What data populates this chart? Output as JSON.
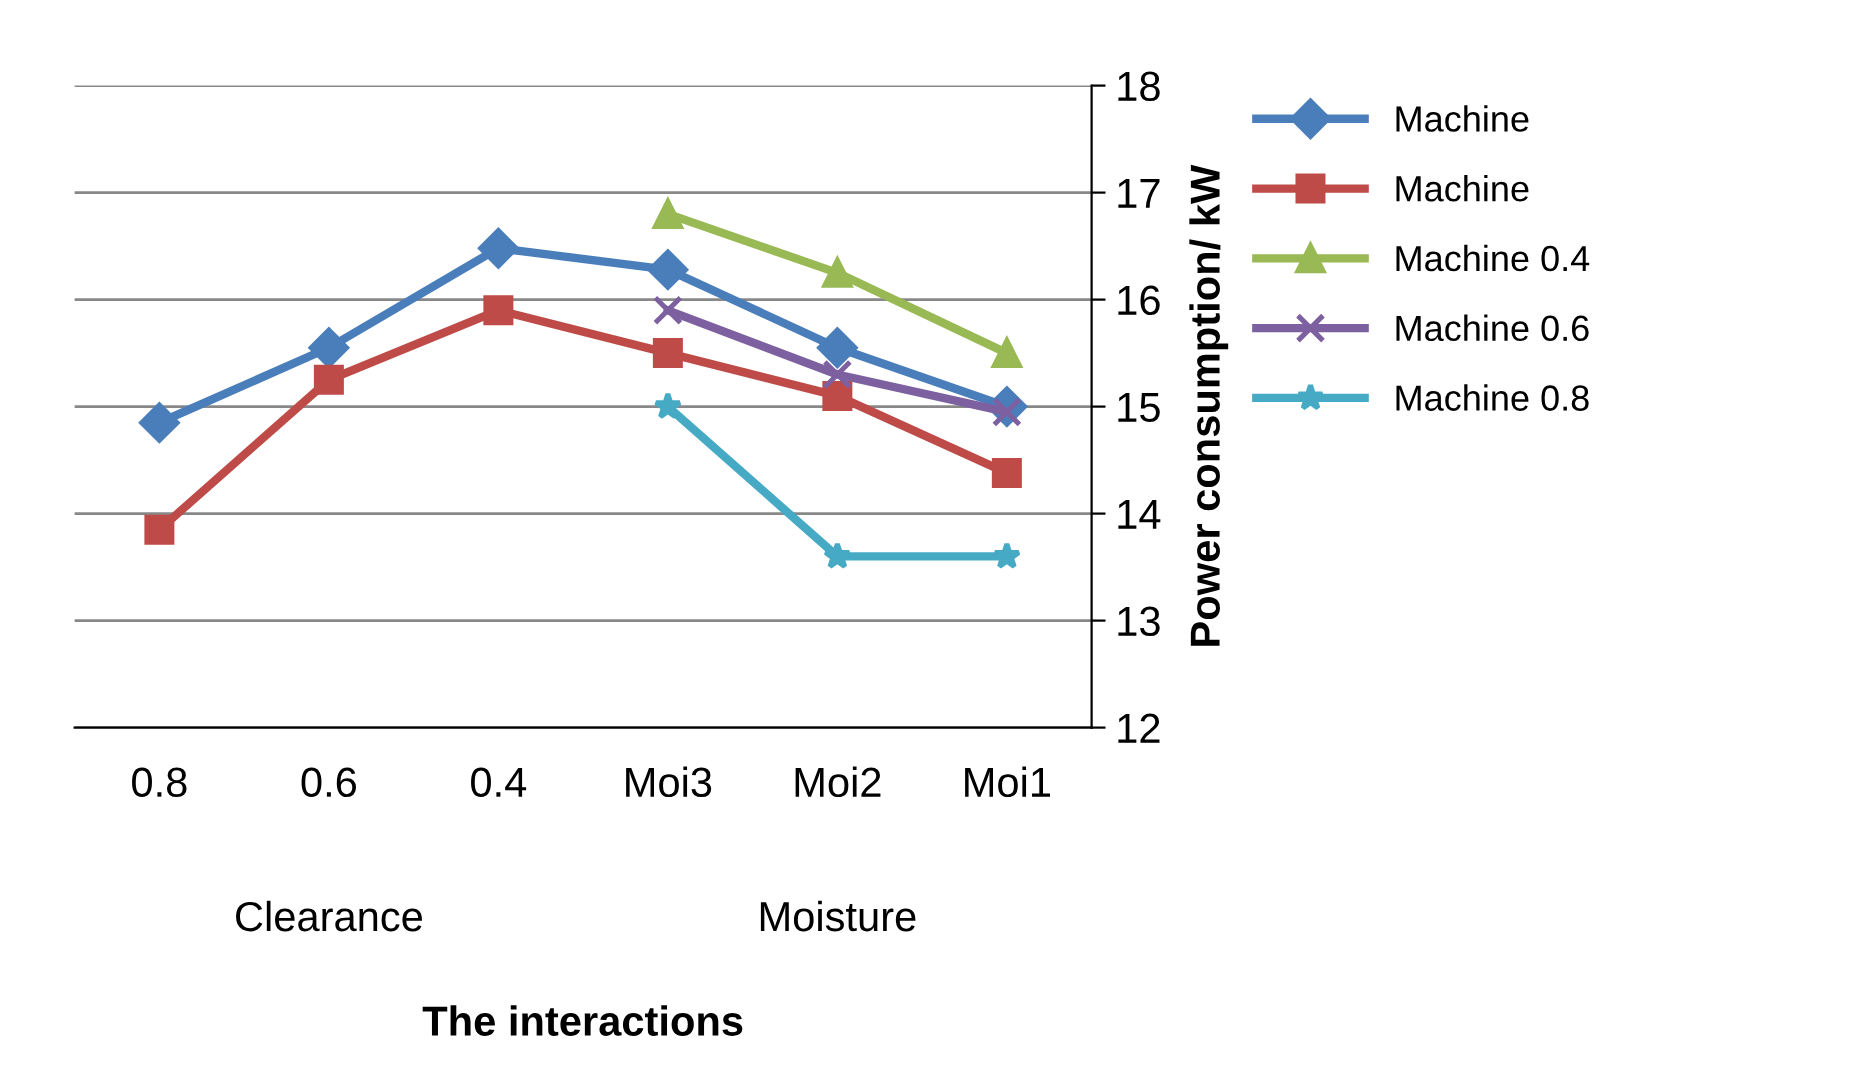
{
  "chart_data": {
    "type": "line",
    "xlabel": "The interactions",
    "ylabel": "Power consumption/ kW",
    "categories": [
      "0.8",
      "0.6",
      "0.4",
      "Moi3",
      "Moi2",
      "Moi1"
    ],
    "annotations": [
      "Clearance",
      "Moisture"
    ],
    "ylim": [
      12,
      18
    ],
    "yticks": [
      12,
      13,
      14,
      15,
      16,
      17,
      18
    ],
    "grid": "y",
    "legend": "right",
    "series": [
      {
        "name": "Machine",
        "color": "#4a7ebb",
        "marker": "diamond",
        "values": [
          14.85,
          15.55,
          16.48,
          16.28,
          15.55,
          15.0
        ]
      },
      {
        "name": "Machine",
        "color": "#be4b48",
        "marker": "square",
        "values": [
          13.85,
          15.25,
          15.9,
          15.5,
          15.1,
          14.38
        ]
      },
      {
        "name": "Machine 0.4",
        "color": "#98b954",
        "marker": "triangle",
        "values": [
          null,
          null,
          null,
          16.8,
          16.25,
          15.5
        ]
      },
      {
        "name": "Machine 0.6",
        "color": "#7d60a0",
        "marker": "cross",
        "values": [
          null,
          null,
          null,
          15.9,
          15.3,
          14.95
        ]
      },
      {
        "name": "Machine 0.8",
        "color": "#46aac5",
        "marker": "star",
        "values": [
          null,
          null,
          null,
          15.0,
          13.6,
          13.6
        ]
      }
    ]
  }
}
